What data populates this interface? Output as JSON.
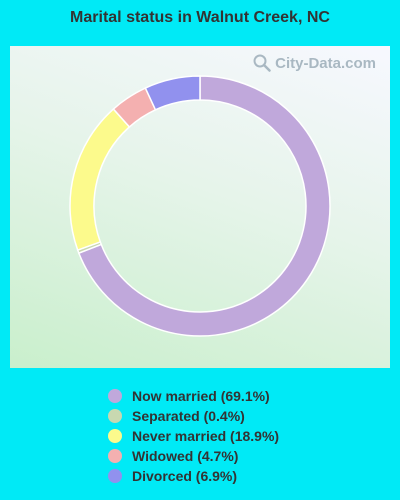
{
  "chart_data": {
    "type": "pie",
    "title": "Marital status in Walnut Creek, NC",
    "categories": [
      "Now married",
      "Separated",
      "Never married",
      "Widowed",
      "Divorced"
    ],
    "values": [
      69.1,
      0.4,
      18.9,
      4.7,
      6.9
    ],
    "colors": [
      "#c0a8db",
      "#c8d8b0",
      "#fcfa8c",
      "#f4b0b0",
      "#9191ee"
    ],
    "legend_labels": [
      "Now married (69.1%)",
      "Separated (0.4%)",
      "Never married (18.9%)",
      "Widowed (4.7%)",
      "Divorced (6.9%)"
    ],
    "legend_position": "bottom",
    "style": "donut"
  },
  "watermark": "City-Data.com"
}
